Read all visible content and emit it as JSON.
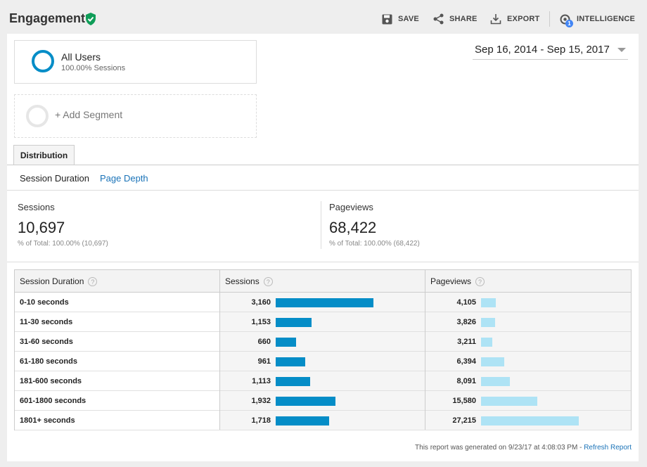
{
  "header": {
    "title": "Engagement",
    "save_label": "SAVE",
    "share_label": "SHARE",
    "export_label": "EXPORT",
    "intelligence_label": "INTELLIGENCE",
    "intelligence_badge": "1"
  },
  "segments": {
    "active": {
      "name": "All Users",
      "detail": "100.00% Sessions",
      "color": "#058dc7"
    },
    "add_label": "+ Add Segment"
  },
  "date_range": "Sep 16, 2014 - Sep 15, 2017",
  "tabs": [
    {
      "label": "Distribution",
      "active": true
    }
  ],
  "subtabs": [
    {
      "label": "Session Duration",
      "active": true
    },
    {
      "label": "Page Depth",
      "active": false
    }
  ],
  "metrics": [
    {
      "label": "Sessions",
      "value": "10,697",
      "detail": "% of Total: 100.00% (10,697)"
    },
    {
      "label": "Pageviews",
      "value": "68,422",
      "detail": "% of Total: 100.00% (68,422)"
    }
  ],
  "table": {
    "columns": [
      "Session Duration",
      "Sessions",
      "Pageviews"
    ],
    "rows": [
      {
        "label": "0-10 seconds",
        "sessions": "3,160",
        "sessions_num": 3160,
        "pageviews": "4,105",
        "pageviews_num": 4105
      },
      {
        "label": "11-30 seconds",
        "sessions": "1,153",
        "sessions_num": 1153,
        "pageviews": "3,826",
        "pageviews_num": 3826
      },
      {
        "label": "31-60 seconds",
        "sessions": "660",
        "sessions_num": 660,
        "pageviews": "3,211",
        "pageviews_num": 3211
      },
      {
        "label": "61-180 seconds",
        "sessions": "961",
        "sessions_num": 961,
        "pageviews": "6,394",
        "pageviews_num": 6394
      },
      {
        "label": "181-600 seconds",
        "sessions": "1,113",
        "sessions_num": 1113,
        "pageviews": "8,091",
        "pageviews_num": 8091
      },
      {
        "label": "601-1800 seconds",
        "sessions": "1,932",
        "sessions_num": 1932,
        "pageviews": "15,580",
        "pageviews_num": 15580
      },
      {
        "label": "1801+ seconds",
        "sessions": "1,718",
        "sessions_num": 1718,
        "pageviews": "27,215",
        "pageviews_num": 27215
      }
    ],
    "help_glyph": "?"
  },
  "colors": {
    "sessions_bar": "#058dc7",
    "pageviews_bar": "#aee3f5",
    "link": "#1a73b8",
    "verified": "#0f9d58"
  },
  "footer": {
    "text": "This report was generated on 9/23/17 at 4:08:03 PM - ",
    "refresh_label": "Refresh Report"
  }
}
